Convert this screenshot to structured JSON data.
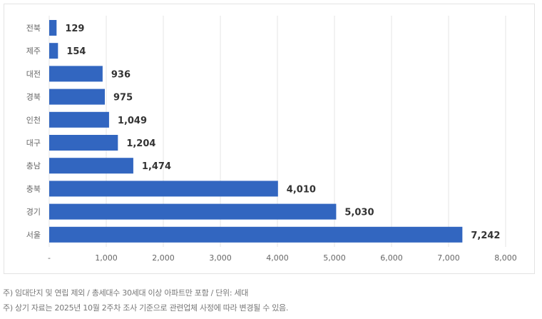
{
  "chart_data": {
    "type": "bar",
    "orientation": "horizontal",
    "categories": [
      "전북",
      "제주",
      "대전",
      "경북",
      "인천",
      "대구",
      "충남",
      "충북",
      "경기",
      "서울"
    ],
    "values": [
      129,
      154,
      936,
      975,
      1049,
      1204,
      1474,
      4010,
      5030,
      7242
    ],
    "value_labels": [
      "129",
      "154",
      "936",
      "975",
      "1,049",
      "1,204",
      "1,474",
      "4,010",
      "5,030",
      "7,242"
    ],
    "xlim": [
      0,
      8000
    ],
    "xticks": [
      0,
      1000,
      2000,
      3000,
      4000,
      5000,
      6000,
      7000,
      8000
    ],
    "xtick_labels": [
      "-",
      "1,000",
      "2,000",
      "3,000",
      "4,000",
      "5,000",
      "6,000",
      "7,000",
      "8,000"
    ],
    "grid": true,
    "bar_color": "#3266c0"
  },
  "notes": [
    "주) 임대단지 및 연립 제외 / 총세대수 30세대 이상 아파트만 포함 / 단위: 세대",
    "주) 상기 자료는 2025년 10월 2주차 조사 기준으로 관련업체 사정에 따라 변경될 수 있음."
  ]
}
